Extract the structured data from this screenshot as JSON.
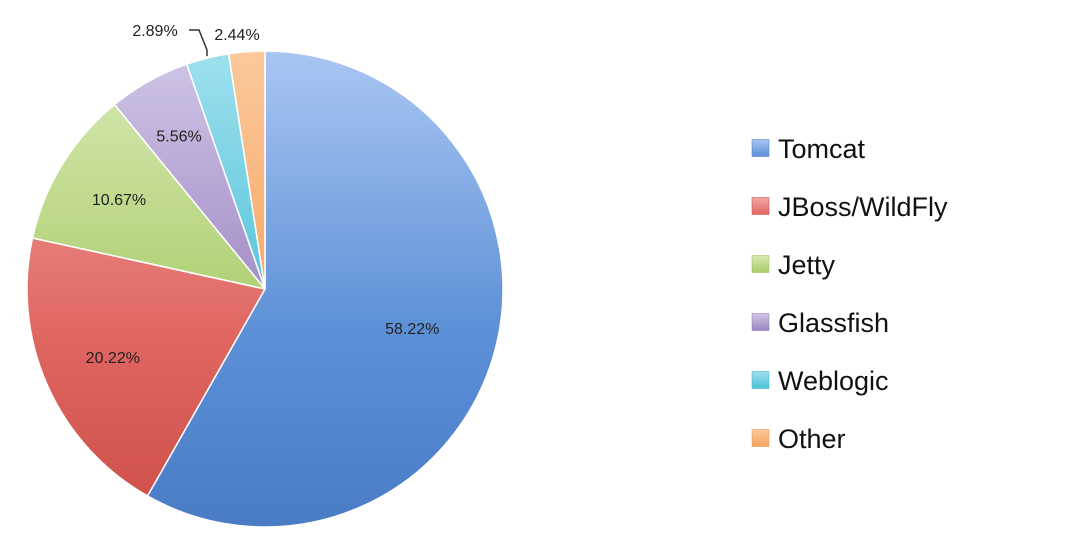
{
  "chart_data": {
    "type": "pie",
    "start_angle_deg": 0,
    "direction": "clockwise",
    "legend_position": "right",
    "slices": [
      {
        "label": "Tomcat",
        "value": 58.22,
        "display": "58.22%",
        "color": "#5b8fd6",
        "light": "#a9c6f2",
        "dark": "#4a7cc6"
      },
      {
        "label": "JBoss/WildFly",
        "value": 20.22,
        "display": "20.22%",
        "color": "#e06661",
        "light": "#f2a7a4",
        "dark": "#cc4e48"
      },
      {
        "label": "Jetty",
        "value": 10.67,
        "display": "10.67%",
        "color": "#a9cc6a",
        "light": "#d8eab6",
        "dark": "#98bc58"
      },
      {
        "label": "Glassfish",
        "value": 5.56,
        "display": "5.56%",
        "color": "#9a84c2",
        "light": "#d1c6e6",
        "dark": "#8a72b6"
      },
      {
        "label": "Weblogic",
        "value": 2.89,
        "display": "2.89%",
        "color": "#4cc0d8",
        "light": "#9fe0ee",
        "dark": "#38b0ca"
      },
      {
        "label": "Other",
        "value": 2.44,
        "display": "2.44%",
        "color": "#f5a35e",
        "light": "#fbc99c",
        "dark": "#ee9146"
      }
    ]
  }
}
